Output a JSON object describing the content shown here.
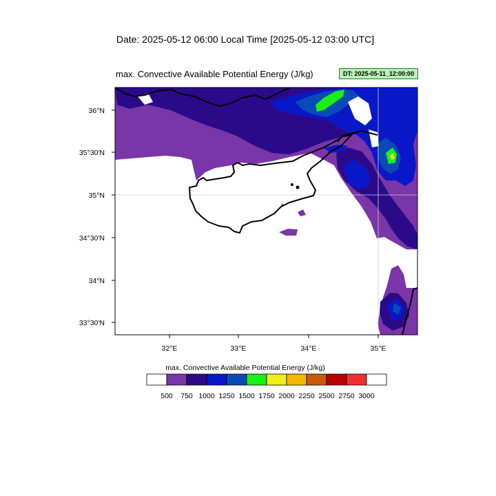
{
  "header": {
    "date_line": "Date: 2025-05-12  06:00 Local Time [2025-05-12  03:00 UTC]",
    "map_title": "max. Convective Available Potential Energy   (J/kg)",
    "dt_badge": "DT: 2025-05-11_12:00:00",
    "badge_color": "#b7f0b7"
  },
  "map": {
    "region": "Eastern Mediterranean / Cyprus",
    "variable": "max. Convective Available Potential Energy",
    "units": "J/kg",
    "lat_ticks": [
      "36°N",
      "35°30'N",
      "35°N",
      "34°30'N",
      "34°N",
      "33°30'N"
    ],
    "lon_ticks": [
      "32°E",
      "33°E",
      "34°E",
      "35°E"
    ],
    "gridlines": true
  },
  "colorbar": {
    "title": "max. Convective Available Potential Energy  (J/kg)",
    "labels": [
      "500",
      "750",
      "1000",
      "1250",
      "1500",
      "1750",
      "2000",
      "2250",
      "2500",
      "2750",
      "3000"
    ],
    "colors": [
      "#ffffff",
      "#7a35a8",
      "#2b0a8a",
      "#0818c8",
      "#0a4ab8",
      "#18f018",
      "#f0f018",
      "#f5b800",
      "#c85a08",
      "#b80000",
      "#f03030",
      "#ffffff"
    ]
  }
}
